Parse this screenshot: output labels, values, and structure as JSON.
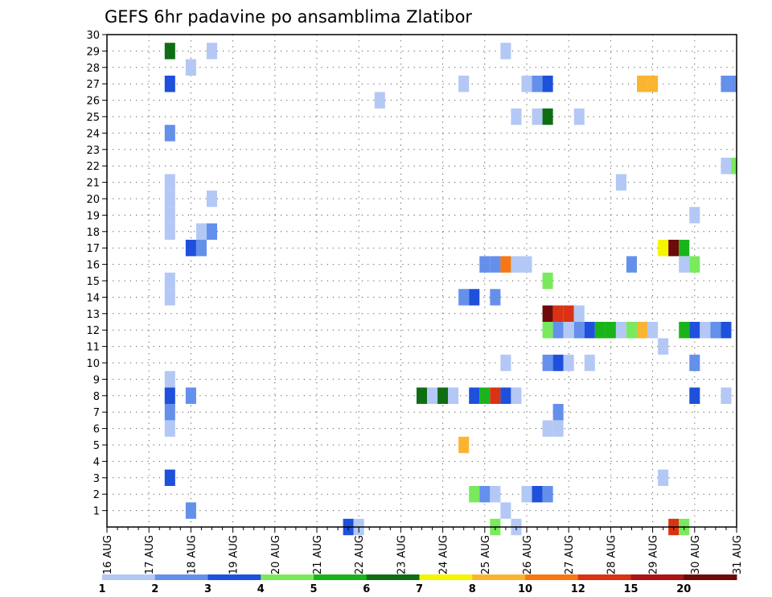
{
  "chart_data": {
    "type": "heatmap",
    "title": "GEFS 6hr padavine po ansamblima Zlatibor",
    "xlabel": "",
    "ylabel": "",
    "x_tick_labels": [
      "16 AUG",
      "17 AUG",
      "18 AUG",
      "19 AUG",
      "20 AUG",
      "21 AUG",
      "22 AUG",
      "23 AUG",
      "24 AUG",
      "25 AUG",
      "26 AUG",
      "27 AUG",
      "28 AUG",
      "29 AUG",
      "30 AUG",
      "31 AUG"
    ],
    "y_ticks": [
      1,
      2,
      3,
      4,
      5,
      6,
      7,
      8,
      9,
      10,
      11,
      12,
      13,
      14,
      15,
      16,
      17,
      18,
      19,
      20,
      21,
      22,
      23,
      24,
      25,
      26,
      27,
      28,
      29,
      30
    ],
    "x_range_steps": [
      0,
      60
    ],
    "y_range": [
      0,
      30
    ],
    "grid": true,
    "steps_per_day": 4,
    "colorbar": {
      "labels": [
        "1",
        "2",
        "3",
        "4",
        "5",
        "6",
        "7",
        "8",
        "10",
        "12",
        "15",
        "20"
      ],
      "colors": [
        "#b4c8f5",
        "#6490eb",
        "#1e50dc",
        "#78ea5c",
        "#19b419",
        "#0f6e14",
        "#f5f500",
        "#fab432",
        "#f57814",
        "#dc3214",
        "#aa1414",
        "#6e0a0a"
      ]
    },
    "cells": [
      [
        6,
        29,
        5
      ],
      [
        6,
        27,
        2
      ],
      [
        6,
        24,
        1
      ],
      [
        6,
        21,
        0
      ],
      [
        6,
        20,
        0
      ],
      [
        6,
        19,
        0
      ],
      [
        6,
        18,
        0
      ],
      [
        6,
        15,
        0
      ],
      [
        6,
        14,
        0
      ],
      [
        6,
        9,
        0
      ],
      [
        6,
        8,
        2
      ],
      [
        6,
        7,
        1
      ],
      [
        6,
        6,
        0
      ],
      [
        6,
        3,
        2
      ],
      [
        8,
        28,
        0
      ],
      [
        8,
        17,
        2
      ],
      [
        8,
        8,
        1
      ],
      [
        8,
        1,
        1
      ],
      [
        9,
        18,
        0
      ],
      [
        9,
        17,
        1
      ],
      [
        10,
        29,
        0
      ],
      [
        10,
        20,
        0
      ],
      [
        10,
        18,
        1
      ],
      [
        23,
        0,
        2
      ],
      [
        24,
        0,
        0
      ],
      [
        26,
        26,
        0
      ],
      [
        30,
        8,
        5
      ],
      [
        31,
        8,
        0
      ],
      [
        32,
        8,
        5
      ],
      [
        33,
        8,
        0
      ],
      [
        34,
        27,
        0
      ],
      [
        34,
        14,
        1
      ],
      [
        34,
        5,
        7
      ],
      [
        35,
        14,
        2
      ],
      [
        35,
        8,
        2
      ],
      [
        35,
        2,
        3
      ],
      [
        36,
        16,
        1
      ],
      [
        36,
        8,
        4
      ],
      [
        36,
        2,
        1
      ],
      [
        37,
        16,
        1
      ],
      [
        37,
        14,
        1
      ],
      [
        37,
        8,
        9
      ],
      [
        37,
        2,
        0
      ],
      [
        37,
        0,
        3
      ],
      [
        38,
        29,
        0
      ],
      [
        38,
        16,
        8
      ],
      [
        38,
        10,
        0
      ],
      [
        38,
        8,
        2
      ],
      [
        38,
        1,
        0
      ],
      [
        39,
        25,
        0
      ],
      [
        39,
        16,
        0
      ],
      [
        39,
        8,
        0
      ],
      [
        39,
        0,
        0
      ],
      [
        40,
        27,
        0
      ],
      [
        40,
        16,
        0
      ],
      [
        40,
        2,
        0
      ],
      [
        41,
        27,
        1
      ],
      [
        41,
        25,
        0
      ],
      [
        41,
        2,
        2
      ],
      [
        42,
        27,
        2
      ],
      [
        42,
        25,
        5
      ],
      [
        42,
        15,
        3
      ],
      [
        42,
        13,
        11
      ],
      [
        42,
        12,
        3
      ],
      [
        42,
        10,
        1
      ],
      [
        42,
        6,
        0
      ],
      [
        42,
        2,
        1
      ],
      [
        43,
        13,
        9
      ],
      [
        43,
        12,
        1
      ],
      [
        43,
        10,
        2
      ],
      [
        43,
        7,
        1
      ],
      [
        43,
        6,
        0
      ],
      [
        44,
        13,
        9
      ],
      [
        44,
        12,
        0
      ],
      [
        44,
        10,
        0
      ],
      [
        45,
        25,
        0
      ],
      [
        45,
        13,
        0
      ],
      [
        45,
        12,
        1
      ],
      [
        46,
        12,
        2
      ],
      [
        46,
        10,
        0
      ],
      [
        47,
        12,
        4
      ],
      [
        48,
        12,
        4
      ],
      [
        49,
        21,
        0
      ],
      [
        49,
        12,
        0
      ],
      [
        50,
        16,
        1
      ],
      [
        50,
        12,
        3
      ],
      [
        51,
        27,
        7
      ],
      [
        51,
        12,
        7
      ],
      [
        52,
        27,
        7
      ],
      [
        52,
        12,
        0
      ],
      [
        53,
        17,
        6
      ],
      [
        53,
        11,
        0
      ],
      [
        53,
        3,
        0
      ],
      [
        54,
        17,
        11
      ],
      [
        54,
        0,
        9
      ],
      [
        55,
        17,
        4
      ],
      [
        55,
        16,
        0
      ],
      [
        55,
        12,
        4
      ],
      [
        55,
        0,
        3
      ],
      [
        56,
        19,
        0
      ],
      [
        56,
        16,
        3
      ],
      [
        56,
        12,
        2
      ],
      [
        56,
        10,
        1
      ],
      [
        56,
        8,
        2
      ],
      [
        57,
        12,
        0
      ],
      [
        58,
        12,
        1
      ],
      [
        59,
        27,
        1
      ],
      [
        59,
        22,
        0
      ],
      [
        59,
        12,
        2
      ],
      [
        59,
        8,
        0
      ],
      [
        60,
        27,
        1
      ],
      [
        60,
        22,
        3
      ]
    ]
  }
}
